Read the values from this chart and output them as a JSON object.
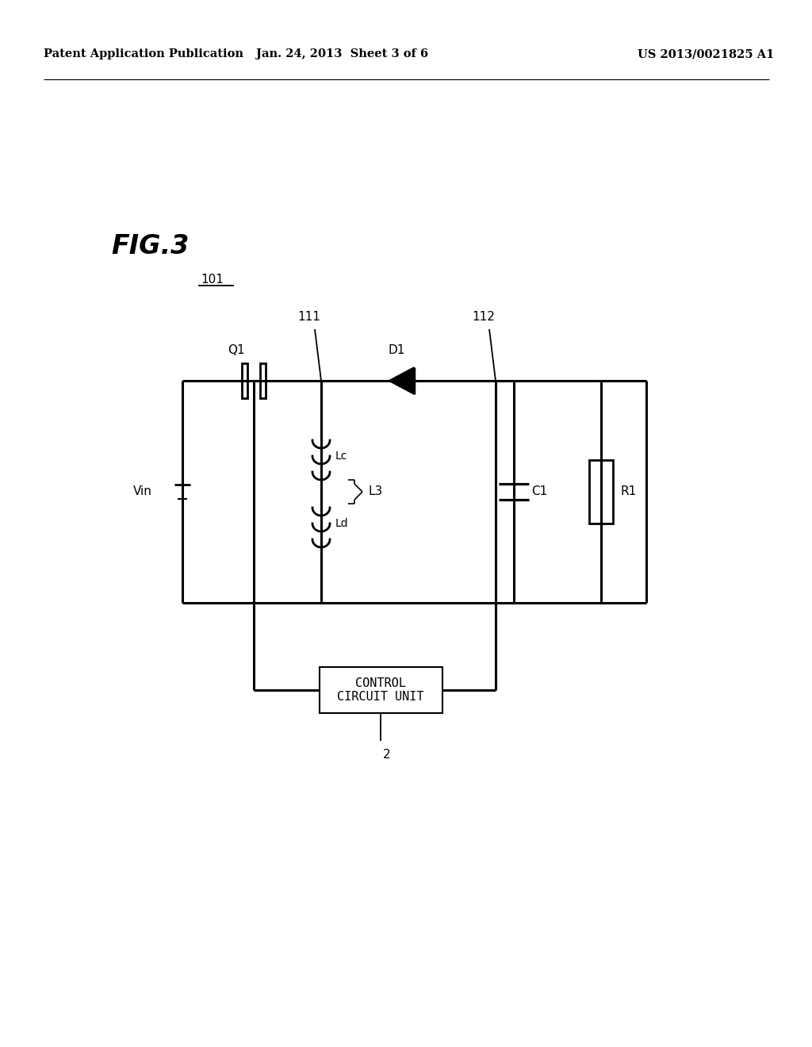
{
  "background_color": "#ffffff",
  "header_left": "Patent Application Publication",
  "header_center": "Jan. 24, 2013  Sheet 3 of 6",
  "header_right": "US 2013/0021825 A1",
  "fig_label": "FIG.3",
  "module_label": "101"
}
